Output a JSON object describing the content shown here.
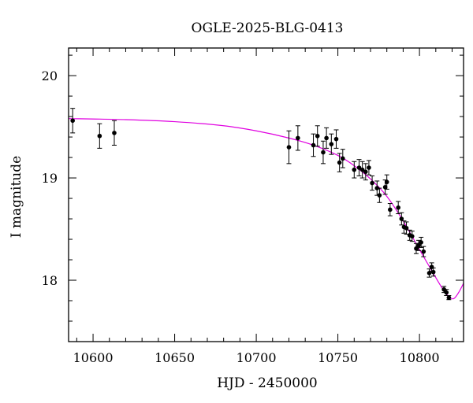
{
  "chart_data": {
    "type": "scatter",
    "title": "OGLE-2025-BLG-0413",
    "xlabel": "HJD - 2450000",
    "ylabel": "I magnitude",
    "xlim": [
      10585,
      10827
    ],
    "ylim": [
      20.27,
      17.4
    ],
    "y_inverted": true,
    "grid": false,
    "legend": "none",
    "x_major_ticks": [
      10600,
      10650,
      10700,
      10750,
      10800
    ],
    "x_minor_step": 10,
    "y_major_ticks": [
      18,
      19,
      20
    ],
    "y_minor_step": 0.2,
    "points_color": "#000000",
    "model_color": "#e000e0",
    "series": [
      {
        "kind": "observations",
        "points": [
          {
            "x": 10587.5,
            "y": 19.56,
            "err": 0.12
          },
          {
            "x": 10604.0,
            "y": 19.41,
            "err": 0.12
          },
          {
            "x": 10613.0,
            "y": 19.44,
            "err": 0.12
          },
          {
            "x": 10720.0,
            "y": 19.3,
            "err": 0.16
          },
          {
            "x": 10725.5,
            "y": 19.39,
            "err": 0.12
          },
          {
            "x": 10735.0,
            "y": 19.32,
            "err": 0.11
          },
          {
            "x": 10737.5,
            "y": 19.41,
            "err": 0.1
          },
          {
            "x": 10741.0,
            "y": 19.25,
            "err": 0.11
          },
          {
            "x": 10743.0,
            "y": 19.39,
            "err": 0.1
          },
          {
            "x": 10746.0,
            "y": 19.33,
            "err": 0.1
          },
          {
            "x": 10749.0,
            "y": 19.38,
            "err": 0.09
          },
          {
            "x": 10751.0,
            "y": 19.15,
            "err": 0.09
          },
          {
            "x": 10753.0,
            "y": 19.19,
            "err": 0.09
          },
          {
            "x": 10760.0,
            "y": 19.08,
            "err": 0.08
          },
          {
            "x": 10763.0,
            "y": 19.1,
            "err": 0.08
          },
          {
            "x": 10765.0,
            "y": 19.08,
            "err": 0.08
          },
          {
            "x": 10767.0,
            "y": 19.06,
            "err": 0.08
          },
          {
            "x": 10769.0,
            "y": 19.1,
            "err": 0.07
          },
          {
            "x": 10771.0,
            "y": 18.95,
            "err": 0.07
          },
          {
            "x": 10774.0,
            "y": 18.9,
            "err": 0.07
          },
          {
            "x": 10775.5,
            "y": 18.83,
            "err": 0.07
          },
          {
            "x": 10779.0,
            "y": 18.91,
            "err": 0.07
          },
          {
            "x": 10780.0,
            "y": 18.96,
            "err": 0.07
          },
          {
            "x": 10782.0,
            "y": 18.69,
            "err": 0.06
          },
          {
            "x": 10787.0,
            "y": 18.71,
            "err": 0.06
          },
          {
            "x": 10789.0,
            "y": 18.6,
            "err": 0.06
          },
          {
            "x": 10790.5,
            "y": 18.52,
            "err": 0.06
          },
          {
            "x": 10792.0,
            "y": 18.51,
            "err": 0.06
          },
          {
            "x": 10794.0,
            "y": 18.44,
            "err": 0.05
          },
          {
            "x": 10795.5,
            "y": 18.43,
            "err": 0.05
          },
          {
            "x": 10798.0,
            "y": 18.31,
            "err": 0.05
          },
          {
            "x": 10799.5,
            "y": 18.34,
            "err": 0.05
          },
          {
            "x": 10801.0,
            "y": 18.37,
            "err": 0.05
          },
          {
            "x": 10802.5,
            "y": 18.28,
            "err": 0.05
          },
          {
            "x": 10806.0,
            "y": 18.07,
            "err": 0.04
          },
          {
            "x": 10807.5,
            "y": 18.13,
            "err": 0.04
          },
          {
            "x": 10808.5,
            "y": 18.08,
            "err": 0.04
          },
          {
            "x": 10815.0,
            "y": 17.91,
            "err": 0.03
          },
          {
            "x": 10816.5,
            "y": 17.88,
            "err": 0.03
          },
          {
            "x": 10818.0,
            "y": 17.83,
            "err": 0.02
          }
        ]
      },
      {
        "kind": "model",
        "points": [
          {
            "x": 10585,
            "y": 19.58
          },
          {
            "x": 10620,
            "y": 19.57
          },
          {
            "x": 10650,
            "y": 19.55
          },
          {
            "x": 10680,
            "y": 19.51
          },
          {
            "x": 10700,
            "y": 19.46
          },
          {
            "x": 10720,
            "y": 19.39
          },
          {
            "x": 10735,
            "y": 19.32
          },
          {
            "x": 10750,
            "y": 19.22
          },
          {
            "x": 10760,
            "y": 19.12
          },
          {
            "x": 10770,
            "y": 18.99
          },
          {
            "x": 10780,
            "y": 18.82
          },
          {
            "x": 10790,
            "y": 18.58
          },
          {
            "x": 10800,
            "y": 18.3
          },
          {
            "x": 10808,
            "y": 18.08
          },
          {
            "x": 10814,
            "y": 17.92
          },
          {
            "x": 10818,
            "y": 17.84
          },
          {
            "x": 10821,
            "y": 17.82
          },
          {
            "x": 10824,
            "y": 17.88
          },
          {
            "x": 10827,
            "y": 17.97
          }
        ]
      }
    ]
  }
}
